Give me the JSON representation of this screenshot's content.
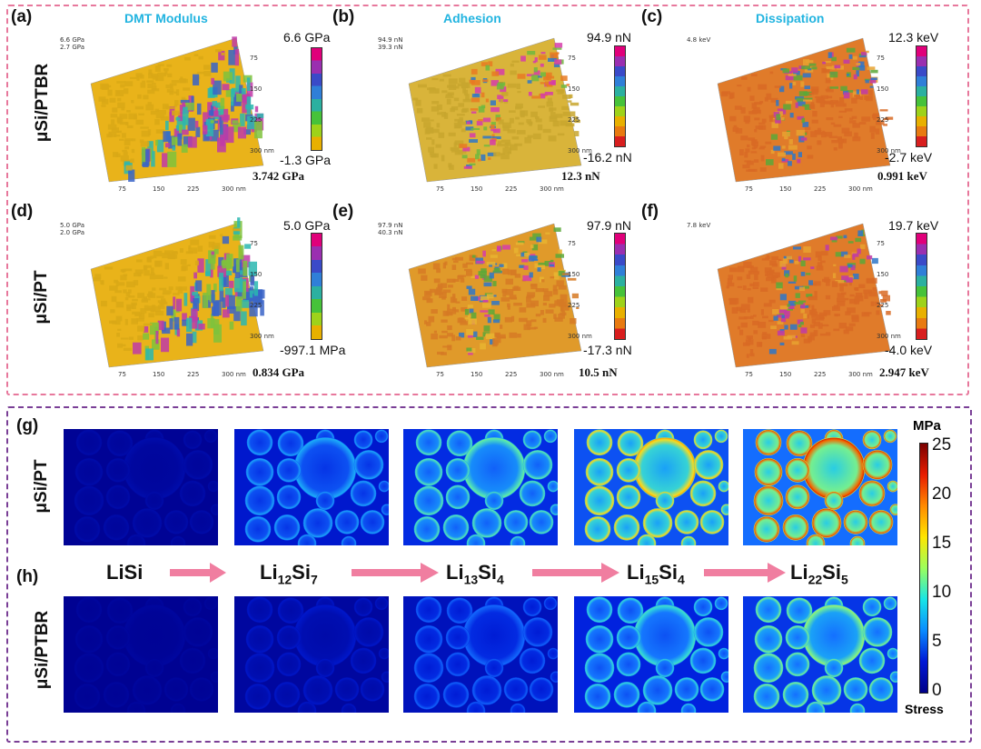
{
  "afm": {
    "titles": [
      "DMT Modulus",
      "Adhesion",
      "Dissipation"
    ],
    "row_labels": [
      "μSi/PTBR",
      "μSi/PT"
    ],
    "panels": [
      {
        "label": "(a)",
        "max": "6.6 GPa",
        "min": "-1.3 GPa",
        "mean": "3.742 GPa",
        "z_ticks": [
          "6.6 GPa",
          "2.7 GPa"
        ]
      },
      {
        "label": "(b)",
        "max": "94.9 nN",
        "min": "-16.2 nN",
        "mean": "12.3 nN",
        "z_ticks": [
          "94.9 nN",
          "39.3 nN"
        ]
      },
      {
        "label": "(c)",
        "max": "12.3 keV",
        "min": "-2.7 keV",
        "mean": "0.991 keV",
        "z_ticks": [
          "4.8 keV"
        ]
      },
      {
        "label": "(d)",
        "max": "5.0 GPa",
        "min": "-997.1 MPa",
        "mean": "0.834 GPa",
        "z_ticks": [
          "5.0 GPa",
          "2.0 GPa"
        ]
      },
      {
        "label": "(e)",
        "max": "97.9 nN",
        "min": "-17.3 nN",
        "mean": "10.5 nN",
        "z_ticks": [
          "97.9 nN",
          "40.3 nN"
        ]
      },
      {
        "label": "(f)",
        "max": "19.7 keV",
        "min": "-4.0 keV",
        "mean": "2.947 keV",
        "z_ticks": [
          "7.8 keV"
        ]
      }
    ],
    "axis_ticks": [
      "75",
      "150",
      "225",
      "300 nm"
    ]
  },
  "sim": {
    "labels": [
      "(g)",
      "(h)"
    ],
    "row_labels": [
      "μSi/PT",
      "μSi/PTBR"
    ],
    "phases": [
      {
        "base": "LiSi",
        "a": "",
        "si": "",
        "b": ""
      },
      {
        "base": "Li",
        "a": "12",
        "si": "Si",
        "b": "7"
      },
      {
        "base": "Li",
        "a": "13",
        "si": "Si",
        "b": "4"
      },
      {
        "base": "Li",
        "a": "15",
        "si": "Si",
        "b": "4"
      },
      {
        "base": "Li",
        "a": "22",
        "si": "Si",
        "b": "5"
      }
    ],
    "scale": {
      "unit": "MPa",
      "label": "Stress",
      "ticks": [
        "25",
        "20",
        "15",
        "10",
        "5",
        "0"
      ]
    },
    "stress_levels_pt": [
      0.05,
      0.35,
      0.5,
      0.7,
      0.85
    ],
    "stress_levels_ptbr": [
      0.03,
      0.1,
      0.25,
      0.45,
      0.55
    ]
  },
  "colors": {
    "top_border": "#e7789c",
    "bottom_border": "#7a3f96",
    "title": "#22b4e0",
    "arrow": "#f07ea0"
  }
}
